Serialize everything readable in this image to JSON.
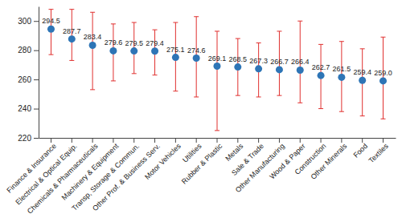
{
  "chart_data": {
    "type": "errorbar",
    "categories": [
      "Finance & Insurance",
      "Electrical & Optical Equip.",
      "Chemicals & Pharmaceuticals",
      "Machinery & Equipment",
      "Transp, Storage & Commun.",
      "Other Prof. & Business Serv.",
      "Motor Vehicles",
      "Utilities",
      "Rubber & Plastic",
      "Metals",
      "Sale & Trade",
      "Other Manufacturing",
      "Wood & Paper",
      "Construction",
      "Other Minerals",
      "Food",
      "Textiles"
    ],
    "values": [
      294.5,
      287.7,
      283.4,
      279.6,
      279.5,
      279.4,
      275.1,
      274.6,
      269.1,
      268.5,
      267.3,
      266.7,
      266.4,
      262.7,
      261.5,
      259.4,
      259.0
    ],
    "value_labels": [
      "294.5",
      "287.7",
      "283.4",
      "279.6",
      "279.5",
      "279.4",
      "275.1",
      "274.6",
      "269.1",
      "268.5",
      "267.3",
      "266.7",
      "266.4",
      "262.7",
      "261.5",
      "259.4",
      "259.0"
    ],
    "error_low": [
      277,
      273,
      253,
      259,
      264,
      263,
      252,
      248,
      225,
      249,
      248,
      249,
      244,
      240,
      238,
      235,
      233
    ],
    "error_high": [
      308,
      308,
      306,
      298,
      299,
      294,
      299,
      303,
      293,
      288,
      285,
      293,
      300,
      284,
      286,
      281,
      289
    ],
    "color": "#2e75b6",
    "error_color": "#e0302f",
    "ylim": [
      220,
      310
    ],
    "yticks": [
      220,
      240,
      260,
      280,
      300
    ],
    "data_labels": true,
    "grid": false
  }
}
